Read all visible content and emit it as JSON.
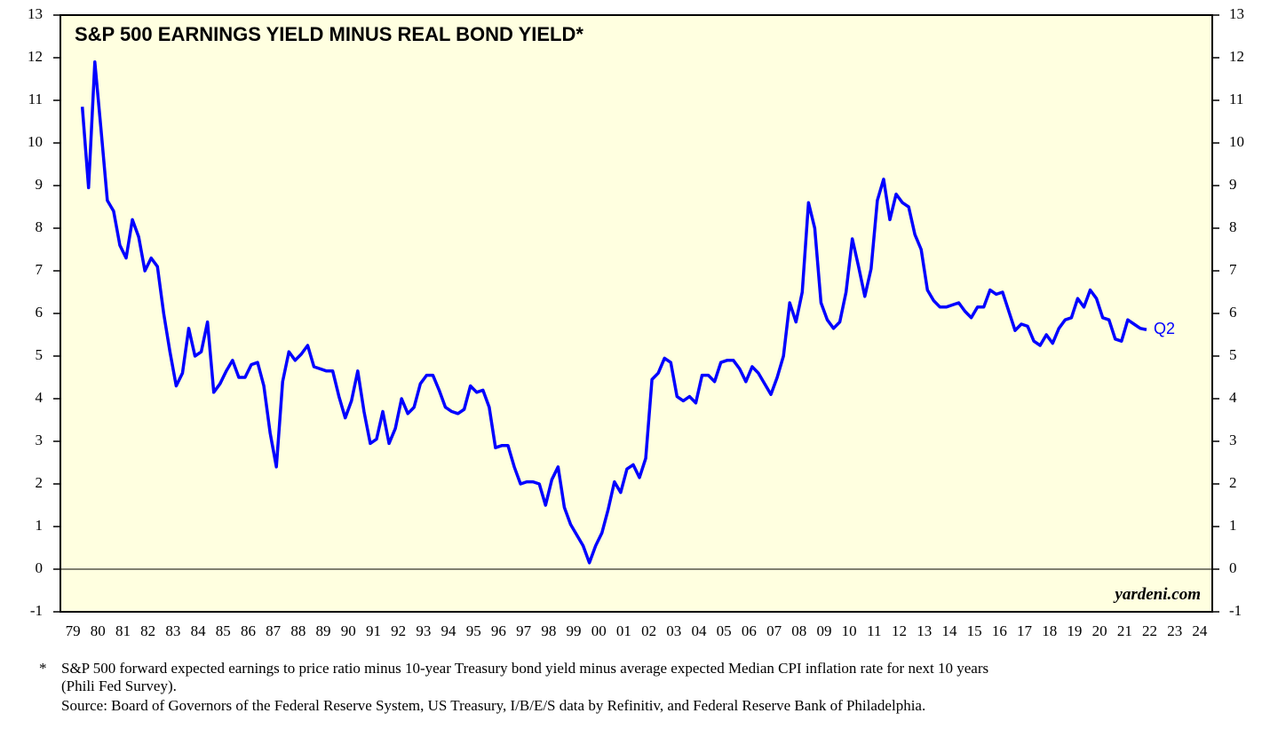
{
  "chart_data": {
    "type": "line",
    "title": "S&P 500 EARNINGS YIELD MINUS REAL BOND YIELD*",
    "categories": [
      null,
      "79",
      null,
      null,
      null,
      "80",
      null,
      null,
      null,
      "81",
      null,
      null,
      null,
      "82",
      null,
      null,
      null,
      "83",
      null,
      null,
      null,
      "84",
      null,
      null,
      null,
      "85",
      null,
      null,
      null,
      "86",
      null,
      null,
      null,
      "87",
      null,
      null,
      null,
      "88",
      null,
      null,
      null,
      "89",
      null,
      null,
      null,
      "90",
      null,
      null,
      null,
      "91",
      null,
      null,
      null,
      "92",
      null,
      null,
      null,
      "93",
      null,
      null,
      null,
      "94",
      null,
      null,
      null,
      "95",
      null,
      null,
      null,
      "96",
      null,
      null,
      null,
      "97",
      null,
      null,
      null,
      "98",
      null,
      null,
      null,
      "99",
      null,
      null,
      null,
      "00",
      null,
      null,
      null,
      "01",
      null,
      null,
      null,
      "02",
      null,
      null,
      null,
      "03",
      null,
      null,
      null,
      "04",
      null,
      null,
      null,
      "05",
      null,
      null,
      null,
      "06",
      null,
      null,
      null,
      "07",
      null,
      null,
      null,
      "08",
      null,
      null,
      null,
      "09",
      null,
      null,
      null,
      "10",
      null,
      null,
      null,
      "11",
      null,
      null,
      null,
      "12",
      null,
      null,
      null,
      "13",
      null,
      null,
      null,
      "14",
      null,
      null,
      null,
      "15",
      null,
      null,
      null,
      "16",
      null,
      null,
      null,
      "17",
      null,
      null,
      null,
      "18",
      null,
      null,
      null,
      "19",
      null,
      null,
      null,
      "20",
      null,
      null,
      null,
      "21",
      null,
      null,
      null,
      "22",
      null,
      null,
      null,
      "23",
      null,
      null,
      null,
      "24",
      null,
      null
    ],
    "series": [
      {
        "color": "#0000ff",
        "values": [
          null,
          null,
          null,
          10.85,
          8.95,
          11.9,
          10.3,
          8.65,
          8.4,
          7.6,
          7.3,
          8.2,
          7.8,
          7.0,
          7.3,
          7.1,
          6.0,
          5.1,
          4.3,
          4.6,
          5.65,
          5.0,
          5.1,
          5.8,
          4.15,
          4.35,
          4.65,
          4.9,
          4.5,
          4.5,
          4.8,
          4.85,
          4.3,
          3.2,
          2.4,
          4.4,
          5.1,
          4.9,
          5.05,
          5.25,
          4.75,
          4.7,
          4.65,
          4.65,
          4.05,
          3.55,
          3.95,
          4.65,
          3.7,
          2.95,
          3.05,
          3.7,
          2.95,
          3.3,
          4.0,
          3.65,
          3.8,
          4.35,
          4.55,
          4.55,
          4.2,
          3.8,
          3.7,
          3.65,
          3.75,
          4.3,
          4.15,
          4.2,
          3.8,
          2.85,
          2.9,
          2.9,
          2.4,
          2.0,
          2.05,
          2.05,
          2.0,
          1.5,
          2.1,
          2.4,
          1.45,
          1.05,
          0.8,
          0.55,
          0.15,
          0.55,
          0.85,
          1.4,
          2.05,
          1.8,
          2.35,
          2.45,
          2.15,
          2.6,
          4.45,
          4.6,
          4.95,
          4.85,
          4.05,
          3.95,
          4.05,
          3.9,
          4.55,
          4.55,
          4.4,
          4.85,
          4.9,
          4.9,
          4.7,
          4.4,
          4.75,
          4.6,
          4.35,
          4.1,
          4.5,
          5.0,
          6.25,
          5.8,
          6.5,
          8.6,
          8.0,
          6.25,
          5.85,
          5.65,
          5.8,
          6.5,
          7.75,
          7.1,
          6.4,
          7.05,
          8.65,
          9.15,
          8.2,
          8.8,
          8.6,
          8.5,
          7.85,
          7.5,
          6.55,
          6.3,
          6.15,
          6.15,
          6.2,
          6.25,
          6.05,
          5.9,
          6.15,
          6.15,
          6.55,
          6.45,
          6.5,
          6.05,
          5.6,
          5.75,
          5.7,
          5.35,
          5.25,
          5.5,
          5.3,
          5.65,
          5.85,
          5.9,
          6.35,
          6.15,
          6.55,
          6.35,
          5.9,
          5.85,
          5.4,
          5.35,
          5.85,
          5.75,
          5.65,
          5.62,
          null,
          null,
          null,
          null,
          null,
          null,
          null,
          null,
          null,
          null
        ]
      }
    ],
    "ylim": [
      -1,
      13
    ],
    "yticks": [
      -1,
      0,
      1,
      2,
      3,
      4,
      5,
      6,
      7,
      8,
      9,
      10,
      11,
      12,
      13
    ],
    "end_label": "Q2",
    "source_mark": "yardeni.com",
    "footnote_marker": "*",
    "footnotes": [
      "S&P 500 forward expected earnings to price ratio minus 10-year Treasury bond yield minus average expected Median CPI inflation rate for next 10 years",
      "(Phili Fed Survey).",
      "Source: Board of Governors of the Federal Reserve System, US Treasury, I/B/E/S data by Refinitiv, and Federal Reserve Bank of Philadelphia."
    ]
  }
}
